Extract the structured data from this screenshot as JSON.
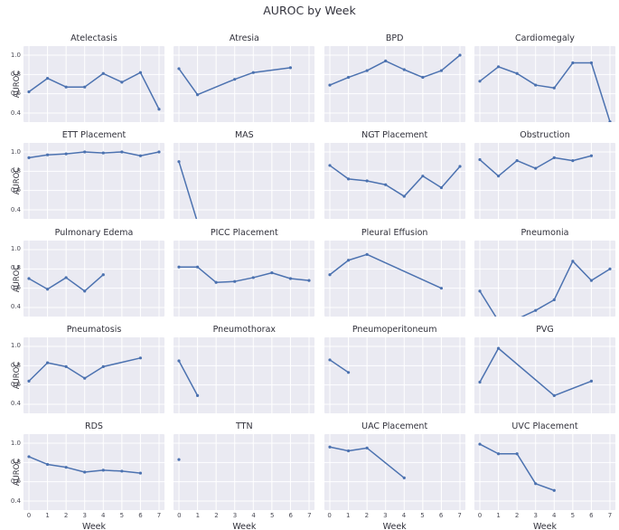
{
  "suptitle": "AUROC by Week",
  "colors": {
    "line": "#4c72b0",
    "plot_background": "#eaeaf2",
    "grid": "#ffffff",
    "title_text": "#32323c",
    "tick_text": "#4b4b55"
  },
  "chart_data": {
    "type": "line",
    "title": "AUROC by Week",
    "facet_grid": {
      "rows": 5,
      "cols": 4
    },
    "xlabel": "Week",
    "ylabel": "AUROC",
    "xticks": [
      "0",
      "1",
      "2",
      "3",
      "4",
      "5",
      "6",
      "7"
    ],
    "yticks": [
      "1.0",
      "0.8",
      "0.6",
      "0.4"
    ],
    "ylim": [
      0.31,
      1.09
    ],
    "xlim": [
      -0.4,
      7.4
    ],
    "grid": true,
    "legend": false,
    "marker": "point",
    "facets": [
      {
        "title": "Atelectasis",
        "weeks": [
          0,
          1,
          2,
          3,
          4,
          5,
          6,
          7
        ],
        "auroc": [
          0.62,
          0.76,
          0.67,
          0.67,
          0.81,
          0.72,
          0.82,
          0.44
        ]
      },
      {
        "title": "Atresia",
        "weeks": [
          0,
          1,
          3,
          4,
          6
        ],
        "auroc": [
          0.86,
          0.59,
          0.75,
          0.82,
          0.87
        ]
      },
      {
        "title": "BPD",
        "weeks": [
          0,
          1,
          2,
          3,
          4,
          5,
          6,
          7
        ],
        "auroc": [
          0.69,
          0.77,
          0.84,
          0.94,
          0.85,
          0.77,
          0.84,
          1.0
        ]
      },
      {
        "title": "Cardiomegaly",
        "weeks": [
          0,
          1,
          2,
          3,
          4,
          5,
          6,
          7
        ],
        "auroc": [
          0.73,
          0.88,
          0.81,
          0.69,
          0.66,
          0.92,
          0.92,
          0.31
        ]
      },
      {
        "title": "ETT Placement",
        "weeks": [
          0,
          1,
          2,
          3,
          4,
          5,
          6,
          7
        ],
        "auroc": [
          0.94,
          0.97,
          0.98,
          1.0,
          0.99,
          1.0,
          0.96,
          1.0
        ]
      },
      {
        "title": "MAS",
        "weeks": [
          0,
          1
        ],
        "auroc": [
          0.9,
          0.27
        ]
      },
      {
        "title": "NGT Placement",
        "weeks": [
          0,
          1,
          2,
          3,
          4,
          5,
          6,
          7
        ],
        "auroc": [
          0.86,
          0.72,
          0.7,
          0.66,
          0.54,
          0.75,
          0.63,
          0.85
        ]
      },
      {
        "title": "Obstruction",
        "weeks": [
          0,
          1,
          2,
          3,
          4,
          5,
          6
        ],
        "auroc": [
          0.92,
          0.75,
          0.91,
          0.83,
          0.94,
          0.91,
          0.96
        ]
      },
      {
        "title": "Pulmonary Edema",
        "weeks": [
          0,
          1,
          2,
          3,
          4
        ],
        "auroc": [
          0.7,
          0.59,
          0.71,
          0.57,
          0.74
        ]
      },
      {
        "title": "PICC Placement",
        "weeks": [
          0,
          1,
          2,
          3,
          4,
          5,
          6,
          7
        ],
        "auroc": [
          0.82,
          0.82,
          0.66,
          0.67,
          0.71,
          0.76,
          0.7,
          0.68
        ]
      },
      {
        "title": "Pleural Effusion",
        "weeks": [
          0,
          1,
          2,
          6
        ],
        "auroc": [
          0.74,
          0.89,
          0.95,
          0.6
        ]
      },
      {
        "title": "Pneumonia",
        "weeks": [
          0,
          1,
          2,
          3,
          4,
          5,
          6,
          7
        ],
        "auroc": [
          0.57,
          0.26,
          0.28,
          0.37,
          0.48,
          0.88,
          0.68,
          0.8
        ]
      },
      {
        "title": "Pneumatosis",
        "weeks": [
          0,
          1,
          2,
          3,
          4,
          6
        ],
        "auroc": [
          0.64,
          0.83,
          0.79,
          0.67,
          0.79,
          0.88
        ]
      },
      {
        "title": "Pneumothorax",
        "weeks": [
          0,
          1
        ],
        "auroc": [
          0.85,
          0.49
        ]
      },
      {
        "title": "Pneumoperitoneum",
        "weeks": [
          0,
          1
        ],
        "auroc": [
          0.86,
          0.73
        ]
      },
      {
        "title": "PVG",
        "weeks": [
          0,
          1,
          4,
          6
        ],
        "auroc": [
          0.63,
          0.98,
          0.49,
          0.64
        ]
      },
      {
        "title": "RDS",
        "weeks": [
          0,
          1,
          2,
          3,
          4,
          5,
          6
        ],
        "auroc": [
          0.86,
          0.78,
          0.75,
          0.7,
          0.72,
          0.71,
          0.69
        ]
      },
      {
        "title": "TTN",
        "weeks": [
          0
        ],
        "auroc": [
          0.83
        ]
      },
      {
        "title": "UAC Placement",
        "weeks": [
          0,
          1,
          2,
          4
        ],
        "auroc": [
          0.96,
          0.92,
          0.95,
          0.64
        ]
      },
      {
        "title": "UVC Placement",
        "weeks": [
          0,
          1,
          2,
          3,
          4
        ],
        "auroc": [
          0.99,
          0.89,
          0.89,
          0.58,
          0.51
        ]
      }
    ]
  }
}
